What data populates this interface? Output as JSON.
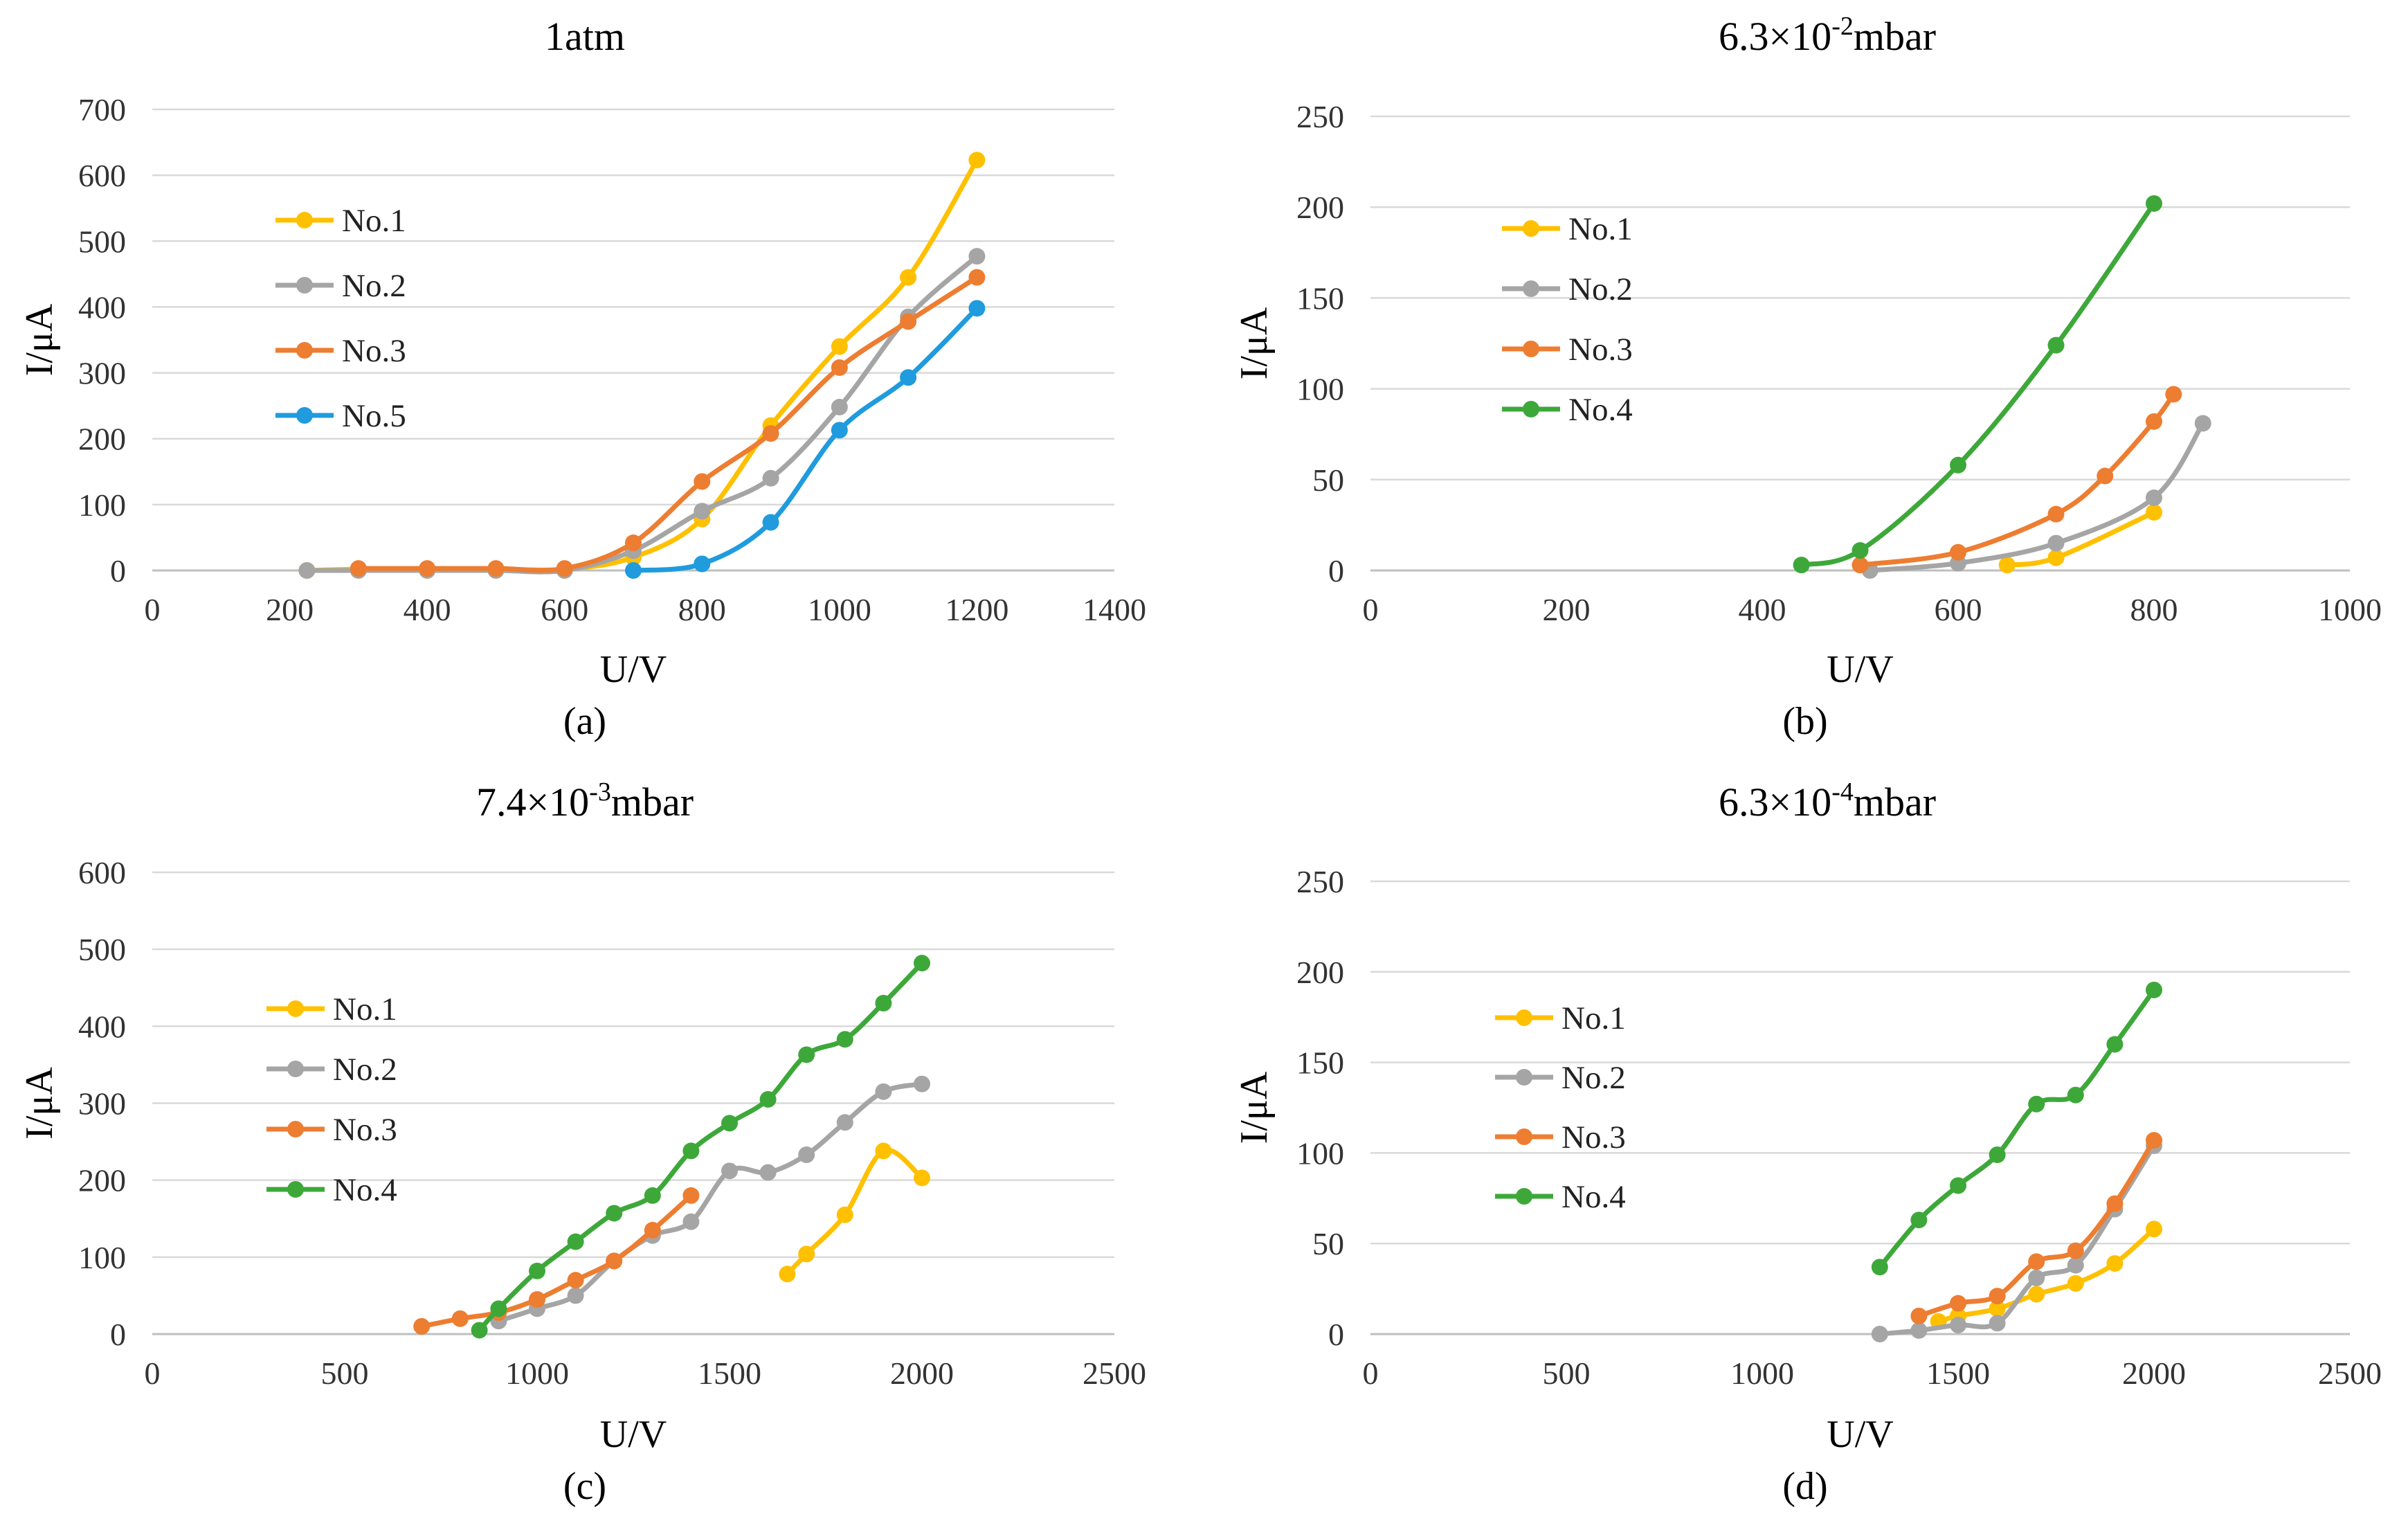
{
  "figure": {
    "captions": [
      "(a)",
      "(b)",
      "(c)",
      "(d)"
    ]
  },
  "chart_data": [
    {
      "type": "line",
      "title": "1atm",
      "xlabel": "U/V",
      "ylabel": "I/μA",
      "xlim": [
        0,
        1400
      ],
      "ylim": [
        0,
        700
      ],
      "xticks": [
        0,
        200,
        400,
        600,
        800,
        1000,
        1200,
        1400
      ],
      "yticks": [
        0,
        100,
        200,
        300,
        400,
        500,
        600,
        700
      ],
      "grid": true,
      "legend": "left",
      "caption": "(a)",
      "series": [
        {
          "name": "No.1",
          "color": "#FFC000",
          "x": [
            225,
            300,
            400,
            500,
            600,
            700,
            800,
            900,
            1000,
            1100,
            1200
          ],
          "y": [
            0,
            2,
            2,
            2,
            2,
            20,
            78,
            220,
            340,
            445,
            623
          ]
        },
        {
          "name": "No.2",
          "color": "#A5A5A5",
          "x": [
            225,
            300,
            400,
            500,
            600,
            700,
            800,
            900,
            1000,
            1100,
            1200
          ],
          "y": [
            0,
            0,
            0,
            0,
            0,
            30,
            90,
            140,
            248,
            385,
            477
          ]
        },
        {
          "name": "No.3",
          "color": "#ED7D31",
          "x": [
            300,
            400,
            500,
            600,
            700,
            800,
            900,
            1000,
            1100,
            1200
          ],
          "y": [
            3,
            3,
            3,
            3,
            42,
            135,
            208,
            308,
            378,
            445
          ]
        },
        {
          "name": "No.5",
          "color": "#1F9BDE",
          "x": [
            700,
            800,
            900,
            1000,
            1100,
            1200
          ],
          "y": [
            0,
            10,
            73,
            213,
            293,
            398
          ]
        }
      ]
    },
    {
      "type": "line",
      "title": "6.3×10-2mbar",
      "title_base": "6.3×10",
      "title_exp": "-2",
      "title_unit": "mbar",
      "xlabel": "U/V",
      "ylabel": "I/μA",
      "xlim": [
        0,
        1000
      ],
      "ylim": [
        0,
        250
      ],
      "xticks": [
        0,
        200,
        400,
        600,
        800,
        1000
      ],
      "yticks": [
        0,
        50,
        100,
        150,
        200,
        250
      ],
      "grid": true,
      "legend": "left",
      "caption": "(b)",
      "series": [
        {
          "name": "No.1",
          "color": "#FFC000",
          "x": [
            650,
            700,
            800
          ],
          "y": [
            3,
            7,
            32
          ]
        },
        {
          "name": "No.2",
          "color": "#A5A5A5",
          "x": [
            510,
            600,
            700,
            800,
            850
          ],
          "y": [
            0,
            4,
            15,
            40,
            81
          ]
        },
        {
          "name": "No.3",
          "color": "#ED7D31",
          "x": [
            500,
            600,
            700,
            750,
            800,
            820
          ],
          "y": [
            3,
            10,
            31,
            52,
            82,
            97
          ]
        },
        {
          "name": "No.4",
          "color": "#3DA839",
          "x": [
            440,
            500,
            600,
            700,
            800
          ],
          "y": [
            3,
            11,
            58,
            124,
            202
          ]
        }
      ]
    },
    {
      "type": "line",
      "title": "7.4×10-3mbar",
      "title_base": "7.4×10",
      "title_exp": "-3",
      "title_unit": "mbar",
      "xlabel": "U/V",
      "ylabel": "I/μA",
      "xlim": [
        0,
        2500
      ],
      "ylim": [
        0,
        600
      ],
      "xticks": [
        0,
        500,
        1000,
        1500,
        2000,
        2500
      ],
      "yticks": [
        0,
        100,
        200,
        300,
        400,
        500,
        600
      ],
      "grid": true,
      "legend": "left",
      "caption": "(c)",
      "series": [
        {
          "name": "No.1",
          "color": "#FFC000",
          "x": [
            1650,
            1700,
            1800,
            1900,
            2000
          ],
          "y": [
            78,
            104,
            155,
            238,
            203
          ]
        },
        {
          "name": "No.2",
          "color": "#A5A5A5",
          "x": [
            900,
            1000,
            1100,
            1200,
            1300,
            1400,
            1500,
            1600,
            1700,
            1800,
            1900,
            2000
          ],
          "y": [
            17,
            33,
            50,
            95,
            128,
            146,
            212,
            210,
            233,
            275,
            315,
            325
          ]
        },
        {
          "name": "No.3",
          "color": "#ED7D31",
          "x": [
            700,
            800,
            900,
            1000,
            1100,
            1200,
            1300,
            1400
          ],
          "y": [
            10,
            20,
            28,
            45,
            70,
            95,
            135,
            180
          ]
        },
        {
          "name": "No.4",
          "color": "#3DA839",
          "x": [
            850,
            900,
            1000,
            1100,
            1200,
            1300,
            1400,
            1500,
            1600,
            1700,
            1800,
            1900,
            2000
          ],
          "y": [
            5,
            33,
            82,
            120,
            157,
            180,
            238,
            274,
            305,
            363,
            383,
            430,
            482
          ]
        }
      ]
    },
    {
      "type": "line",
      "title": "6.3×10-4mbar",
      "title_base": "6.3×10",
      "title_exp": "-4",
      "title_unit": "mbar",
      "xlabel": "U/V",
      "ylabel": "I/μA",
      "xlim": [
        0,
        2500
      ],
      "ylim": [
        0,
        250
      ],
      "xticks": [
        0,
        500,
        1000,
        1500,
        2000,
        2500
      ],
      "yticks": [
        0,
        50,
        100,
        150,
        200,
        250
      ],
      "grid": true,
      "legend": "left",
      "caption": "(d)",
      "series": [
        {
          "name": "No.1",
          "color": "#FFC000",
          "x": [
            1450,
            1500,
            1600,
            1700,
            1800,
            1900,
            2000
          ],
          "y": [
            7,
            10,
            14,
            22,
            28,
            39,
            58
          ]
        },
        {
          "name": "No.2",
          "color": "#A5A5A5",
          "x": [
            1300,
            1400,
            1500,
            1600,
            1700,
            1800,
            1900,
            2000
          ],
          "y": [
            0,
            2,
            5,
            6,
            31,
            38,
            69,
            104
          ]
        },
        {
          "name": "No.3",
          "color": "#ED7D31",
          "x": [
            1400,
            1500,
            1600,
            1700,
            1800,
            1900,
            2000
          ],
          "y": [
            10,
            17,
            21,
            40,
            46,
            72,
            107
          ]
        },
        {
          "name": "No.4",
          "color": "#3DA839",
          "x": [
            1300,
            1400,
            1500,
            1600,
            1700,
            1800,
            1900,
            2000
          ],
          "y": [
            37,
            63,
            82,
            99,
            127,
            132,
            160,
            190
          ]
        }
      ]
    }
  ]
}
